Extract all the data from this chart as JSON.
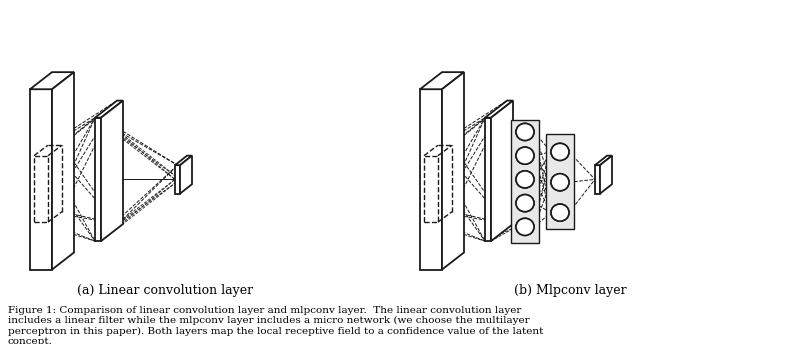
{
  "title": "Figure 1: Comparison of linear convolution layer and mlpconv layer.  The linear convolution layer\nincludes a linear filter while the mlpconv layer includes a micro network (we choose the multilayer\nperceptron in this paper). Both layers map the local receptive field to a confidence value of the latent\nconcept.",
  "label_a": "(a) Linear convolution layer",
  "label_b": "(b) Mlpconv layer",
  "bg_color": "#ffffff",
  "line_color": "#1a1a1a",
  "dashed_color": "#1a1a1a",
  "figsize": [
    7.98,
    3.44
  ],
  "dpi": 100
}
